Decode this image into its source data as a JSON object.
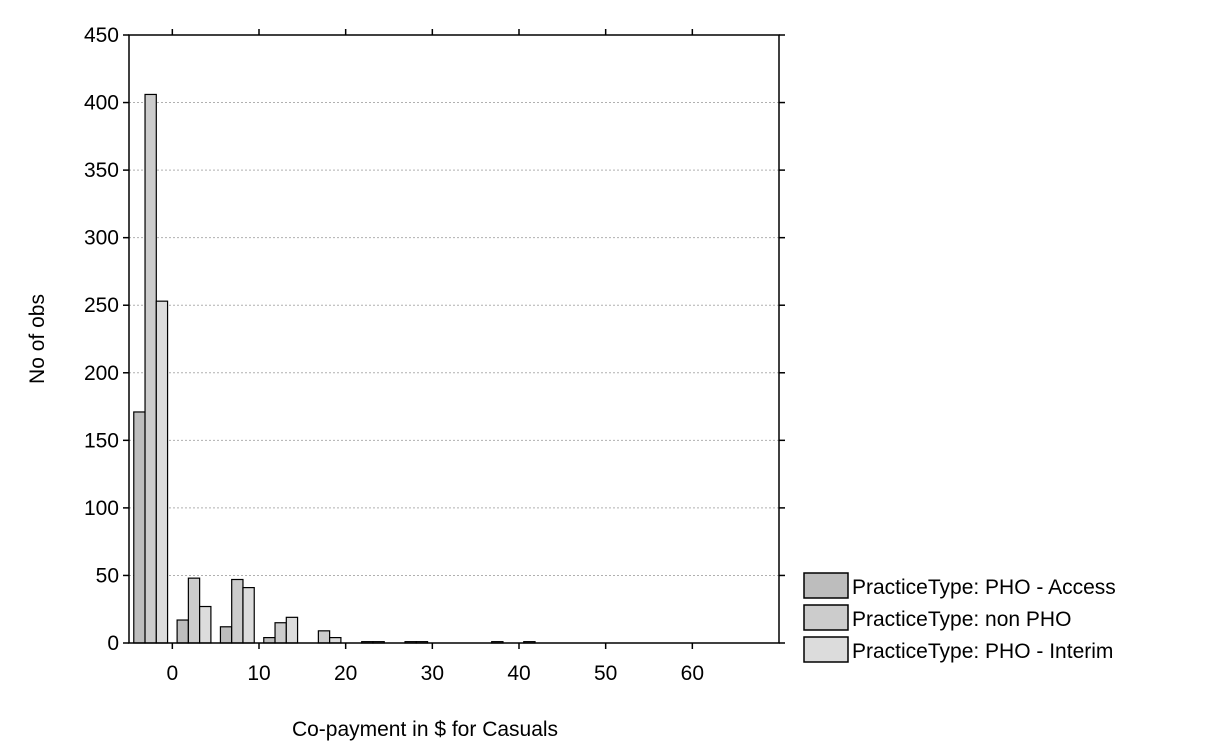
{
  "chart_data": {
    "type": "bar",
    "title": "",
    "xlabel": "Co-payment in $ for Casuals",
    "ylabel": "No of obs",
    "xlim": [
      -5,
      70
    ],
    "ylim": [
      0,
      450
    ],
    "yticks": [
      0,
      50,
      100,
      150,
      200,
      250,
      300,
      350,
      400,
      450
    ],
    "xticks": [
      0,
      10,
      20,
      30,
      40,
      50,
      60
    ],
    "grid": "horizontal",
    "legend_position": "right",
    "bin_width": 5,
    "bin_centers": [
      -2.5,
      2.5,
      7.5,
      12.5,
      17.5,
      22.5,
      27.5,
      32.5,
      37.5,
      42.5,
      47.5,
      52.5,
      57.5,
      62.5,
      67.5
    ],
    "series": [
      {
        "name": "PracticeType: PHO - Access",
        "color": "#bdbdbd",
        "values": [
          171,
          17,
          12,
          4,
          0,
          0,
          0,
          0,
          0,
          1,
          0,
          0,
          0,
          0,
          0
        ]
      },
      {
        "name": "PracticeType: non PHO",
        "color": "#cccccc",
        "values": [
          406,
          48,
          47,
          15,
          9,
          1,
          1,
          0,
          1,
          0,
          0,
          0,
          0,
          0,
          0
        ]
      },
      {
        "name": "PracticeType: PHO - Interim",
        "color": "#dcdcdc",
        "values": [
          253,
          27,
          41,
          19,
          4,
          1,
          1,
          0,
          0,
          0,
          0,
          0,
          0,
          0,
          0
        ]
      }
    ]
  }
}
